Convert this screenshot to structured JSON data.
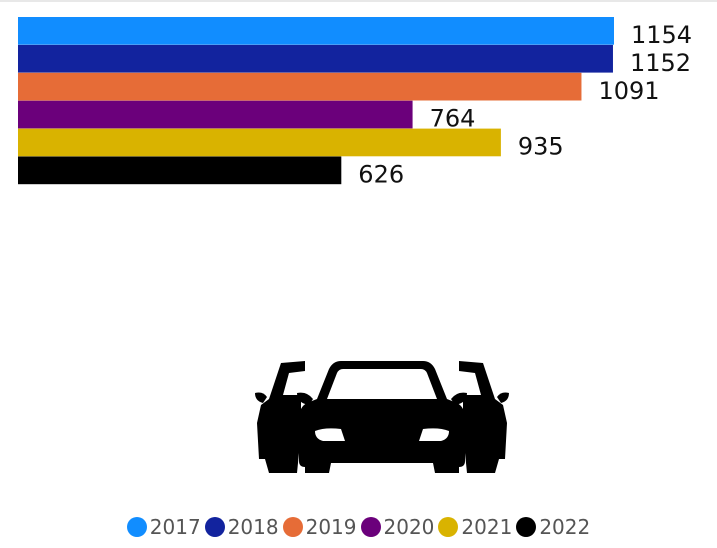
{
  "chart_data": {
    "type": "bar",
    "orientation": "horizontal",
    "categories": [
      "2017",
      "2018",
      "2019",
      "2020",
      "2021",
      "2022"
    ],
    "values": [
      1154,
      1152,
      1091,
      764,
      935,
      626
    ],
    "colors": [
      "#118dff",
      "#12239e",
      "#e66c37",
      "#6b007b",
      "#d9b300",
      "#000000"
    ],
    "data_labels": [
      "1154",
      "1152",
      "1091",
      "764",
      "935",
      "626"
    ],
    "title": "",
    "xlabel": "",
    "ylabel": "",
    "xlim": [
      0,
      1154
    ],
    "grid": false,
    "legend_position": "bottom-center"
  },
  "legend": {
    "items": [
      {
        "label": "2017",
        "color": "#118dff"
      },
      {
        "label": "2018",
        "color": "#12239e"
      },
      {
        "label": "2019",
        "color": "#e66c37"
      },
      {
        "label": "2020",
        "color": "#6b007b"
      },
      {
        "label": "2021",
        "color": "#d9b300"
      },
      {
        "label": "2022",
        "color": "#000000"
      }
    ]
  },
  "illustration": {
    "icon": "cars-icon",
    "color": "#000000"
  }
}
